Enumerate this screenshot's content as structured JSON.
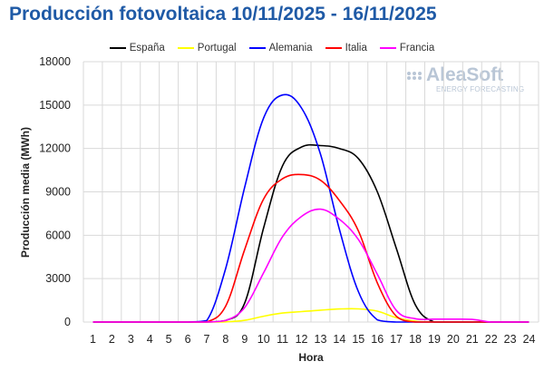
{
  "title": "Producción fotovoltaica 10/11/2025 - 16/11/2025",
  "watermark": {
    "brand": "AleaSoft",
    "tagline": "ENERGY FORECASTING"
  },
  "colors": {
    "España": "#000000",
    "Portugal": "#ffff00",
    "Alemania": "#0000ff",
    "Italia": "#ff0000",
    "Francia": "#ff00ff",
    "title": "#1f5aa6",
    "grid": "#d9d9d9"
  },
  "chart_data": {
    "type": "line",
    "title": "Producción fotovoltaica 10/11/2025 - 16/11/2025",
    "xlabel": "Hora",
    "ylabel": "Producción media (MWh)",
    "x": [
      1,
      2,
      3,
      4,
      5,
      6,
      7,
      8,
      9,
      10,
      11,
      12,
      13,
      14,
      15,
      16,
      17,
      18,
      19,
      20,
      21,
      22,
      23,
      24
    ],
    "ylim": [
      0,
      18000
    ],
    "yticks": [
      0,
      3000,
      6000,
      9000,
      12000,
      15000,
      18000
    ],
    "grid": true,
    "legend_position": "top",
    "series": [
      {
        "name": "España",
        "values": [
          0,
          0,
          0,
          0,
          0,
          0,
          0,
          100,
          1300,
          6500,
          10800,
          12100,
          12200,
          12000,
          11300,
          9000,
          5100,
          1200,
          0,
          0,
          0,
          0,
          0,
          0
        ]
      },
      {
        "name": "Portugal",
        "values": [
          0,
          0,
          0,
          0,
          0,
          0,
          0,
          10,
          120,
          400,
          620,
          720,
          820,
          900,
          910,
          750,
          300,
          60,
          0,
          0,
          0,
          0,
          0,
          0
        ]
      },
      {
        "name": "Alemania",
        "values": [
          0,
          0,
          0,
          0,
          0,
          0,
          100,
          3700,
          9300,
          14100,
          15700,
          14800,
          11600,
          6400,
          2100,
          150,
          0,
          0,
          0,
          0,
          0,
          0,
          0,
          0
        ]
      },
      {
        "name": "Italia",
        "values": [
          0,
          0,
          0,
          0,
          0,
          0,
          0,
          1100,
          5000,
          8500,
          9900,
          10200,
          9800,
          8400,
          6300,
          2700,
          400,
          0,
          0,
          0,
          0,
          0,
          0,
          0
        ]
      },
      {
        "name": "Francia",
        "values": [
          0,
          0,
          0,
          0,
          0,
          0,
          0,
          100,
          1000,
          3400,
          5900,
          7300,
          7800,
          7100,
          5700,
          3300,
          800,
          230,
          200,
          200,
          180,
          0,
          0,
          0
        ]
      }
    ]
  }
}
